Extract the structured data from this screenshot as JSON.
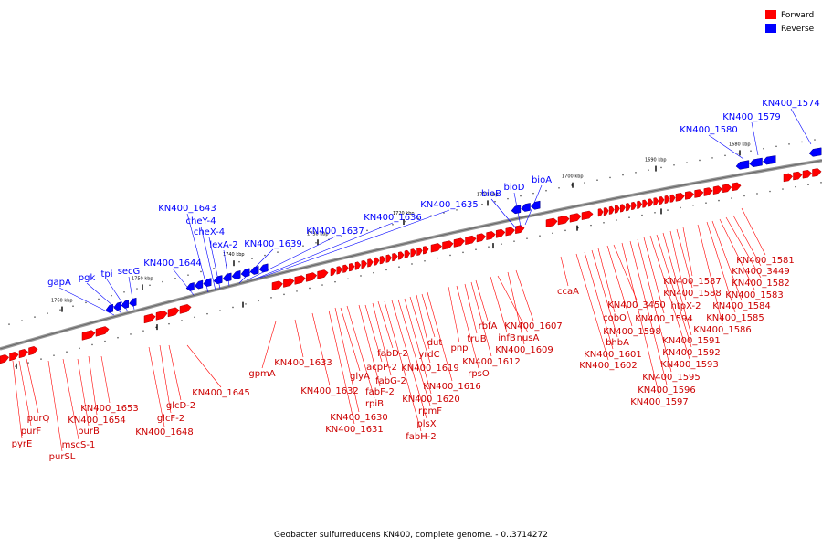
{
  "caption": "Geobacter sulfurreducens KN400, complete genome. - 0..3714272",
  "legend": [
    {
      "label": "Forward",
      "color": "#ff0000"
    },
    {
      "label": "Reverse",
      "color": "#0000ff"
    }
  ],
  "colors": {
    "forward": "#ff0000",
    "reverse": "#0000ff",
    "backbone": "#999999"
  },
  "axis_ticks": [
    "1760 kbp",
    "1750 kbp",
    "1740 kbp",
    "1730 kbp",
    "1720 kbp",
    "1710 kbp",
    "1700 kbp",
    "1690 kbp",
    "1680 kbp"
  ],
  "reverse_labels": [
    "gapA",
    "pgk",
    "tpi",
    "secG",
    "KN400_1644",
    "KN400_1643",
    "cheY-4",
    "cheX-4",
    "lexA-2",
    "KN400_1639",
    "KN400_1637",
    "KN400_1636",
    "KN400_1635",
    "bioB",
    "bioD",
    "bioA",
    "KN400_1580",
    "KN400_1579",
    "KN400_1574"
  ],
  "forward_labels": [
    "pyrE",
    "purF",
    "purQ",
    "purSL",
    "mscS-1",
    "purB",
    "KN400_1654",
    "KN400_1653",
    "KN400_1648",
    "glcF-2",
    "glcD-2",
    "KN400_1645",
    "gpmA",
    "KN400_1633",
    "KN400_1632",
    "KN400_1631",
    "KN400_1630",
    "rpiB",
    "glyA",
    "fabF-2",
    "acpP-2",
    "fabG-2",
    "fabD-2",
    "fabH-2",
    "plsX",
    "rpmF",
    "KN400_1620",
    "KN400_1619",
    "yrdC",
    "dut",
    "KN400_1616",
    "rpsO",
    "truB",
    "pnp",
    "KN400_1612",
    "rbfA",
    "infB",
    "nusA",
    "KN400_1609",
    "KN400_1607",
    "ccaA",
    "KN400_1602",
    "KN400_1601",
    "bhbA",
    "cobO",
    "KN400_1598",
    "KN400_3450",
    "KN400_1597",
    "KN400_1596",
    "KN400_1595",
    "KN400_1594",
    "KN400_1593",
    "KN400_1592",
    "KN400_1591",
    "htpX-2",
    "KN400_1588",
    "KN400_1587",
    "KN400_1586",
    "KN400_1585",
    "KN400_1584",
    "KN400_1583",
    "KN400_1582",
    "KN400_3449",
    "KN400_1581"
  ]
}
